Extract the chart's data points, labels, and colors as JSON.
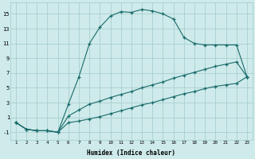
{
  "xlabel": "Humidex (Indice chaleur)",
  "background_color": "#ceeaea",
  "grid_color": "#aacfcf",
  "line_color": "#1a6b6b",
  "xlim": [
    0.5,
    23.5
  ],
  "ylim": [
    -2,
    16.5
  ],
  "xticks": [
    1,
    2,
    3,
    4,
    5,
    6,
    7,
    8,
    9,
    10,
    11,
    12,
    13,
    14,
    15,
    16,
    17,
    18,
    19,
    20,
    21,
    22,
    23
  ],
  "yticks": [
    -1,
    1,
    3,
    5,
    7,
    9,
    11,
    13,
    15
  ],
  "line1_x": [
    1,
    2,
    3,
    4,
    5,
    6,
    7,
    8,
    9,
    10,
    11,
    12,
    13,
    14,
    15,
    16,
    17,
    18,
    19,
    20,
    21,
    22,
    23
  ],
  "line1_y": [
    0.3,
    -0.6,
    -0.8,
    -0.8,
    -1.0,
    2.8,
    6.5,
    11.0,
    13.2,
    14.7,
    15.3,
    15.2,
    15.6,
    15.4,
    15.0,
    14.3,
    11.8,
    11.0,
    10.8,
    10.8,
    10.8,
    10.8,
    6.5
  ],
  "line2_x": [
    1,
    2,
    3,
    4,
    5,
    6,
    7,
    8,
    9,
    10,
    11,
    12,
    13,
    14,
    15,
    16,
    17,
    18,
    19,
    20,
    21,
    22,
    23
  ],
  "line2_y": [
    0.3,
    -0.6,
    -0.8,
    -0.8,
    -1.0,
    1.2,
    2.0,
    2.8,
    3.2,
    3.7,
    4.1,
    4.5,
    5.0,
    5.4,
    5.8,
    6.3,
    6.7,
    7.1,
    7.5,
    7.9,
    8.2,
    8.5,
    6.5
  ],
  "line3_x": [
    1,
    2,
    3,
    4,
    5,
    6,
    7,
    8,
    9,
    10,
    11,
    12,
    13,
    14,
    15,
    16,
    17,
    18,
    19,
    20,
    21,
    22,
    23
  ],
  "line3_y": [
    0.3,
    -0.6,
    -0.8,
    -0.8,
    -1.0,
    0.3,
    0.5,
    0.8,
    1.1,
    1.5,
    1.9,
    2.3,
    2.7,
    3.0,
    3.4,
    3.8,
    4.2,
    4.5,
    4.9,
    5.2,
    5.4,
    5.6,
    6.5
  ]
}
